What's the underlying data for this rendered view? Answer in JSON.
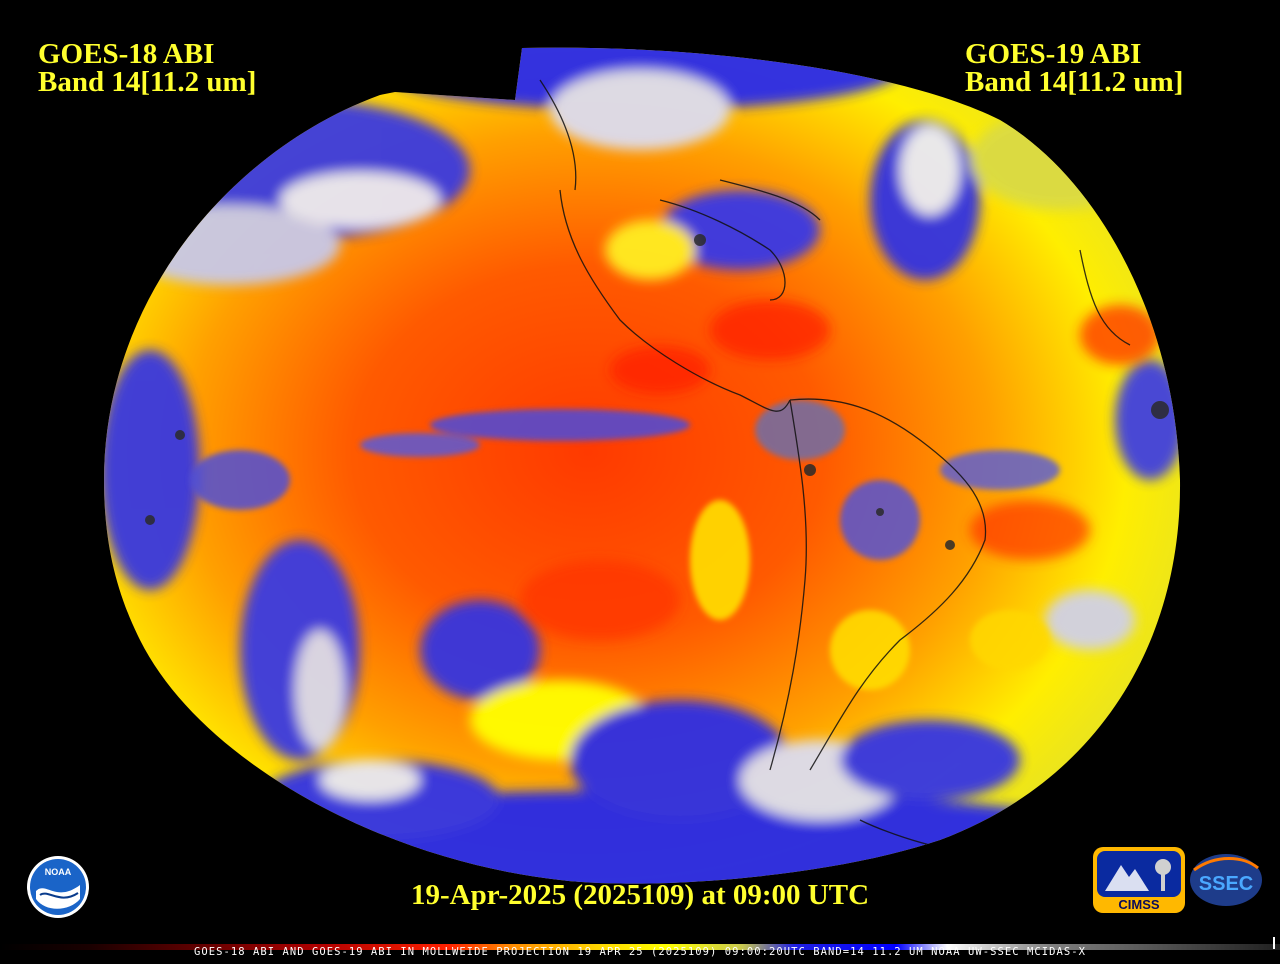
{
  "left_label": {
    "line1": "GOES-18 ABI",
    "line2": "Band 14[11.2 um]"
  },
  "right_label": {
    "line1": "GOES-19 ABI",
    "line2": "Band 14[11.2 um]"
  },
  "date_line": "19-Apr-2025 (2025109) at 09:00 UTC",
  "footer": "GOES-18 ABI AND GOES-19 ABI IN MOLLWEIDE PROJECTION 19 APR 25 (2025109) 09:00:20UTC BAND=14 11.2 UM NOAA UW-SSEC MCIDAS-X",
  "logos": {
    "noaa": "NOAA",
    "cimss": "CIMSS",
    "ssec": "SSEC"
  },
  "colors": {
    "label_yellow": "#ffff2e",
    "warm_red": "#ff2a00",
    "orange": "#ff8c00",
    "yellow": "#ffff00",
    "blue": "#2020e0",
    "cloud_white": "#ffffff",
    "gray": "#8a8a8a"
  }
}
